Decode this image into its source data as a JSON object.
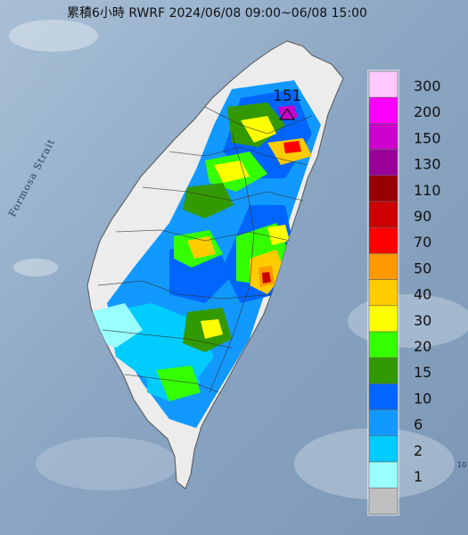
{
  "title": "累積6小時 RWRF 2024/06/08 09:00~06/08 15:00",
  "strait_label": "Formosa Strait",
  "peak_value": "151",
  "corner_mark": "10",
  "legend": [
    {
      "label": "300",
      "color": "#ffc8ff"
    },
    {
      "label": "200",
      "color": "#ff00ff"
    },
    {
      "label": "150",
      "color": "#cc00cc"
    },
    {
      "label": "130",
      "color": "#990099"
    },
    {
      "label": "110",
      "color": "#990000"
    },
    {
      "label": "90",
      "color": "#cc0000"
    },
    {
      "label": "70",
      "color": "#ff0000"
    },
    {
      "label": "50",
      "color": "#ff9900"
    },
    {
      "label": "40",
      "color": "#ffcc00"
    },
    {
      "label": "30",
      "color": "#ffff00"
    },
    {
      "label": "20",
      "color": "#33ff00"
    },
    {
      "label": "15",
      "color": "#339900"
    },
    {
      "label": "10",
      "color": "#0066ff"
    },
    {
      "label": "6",
      "color": "#1199ff"
    },
    {
      "label": "2",
      "color": "#00ccff"
    },
    {
      "label": "1",
      "color": "#99ffff"
    },
    {
      "label": "",
      "color": "#c0c0c0"
    }
  ]
}
